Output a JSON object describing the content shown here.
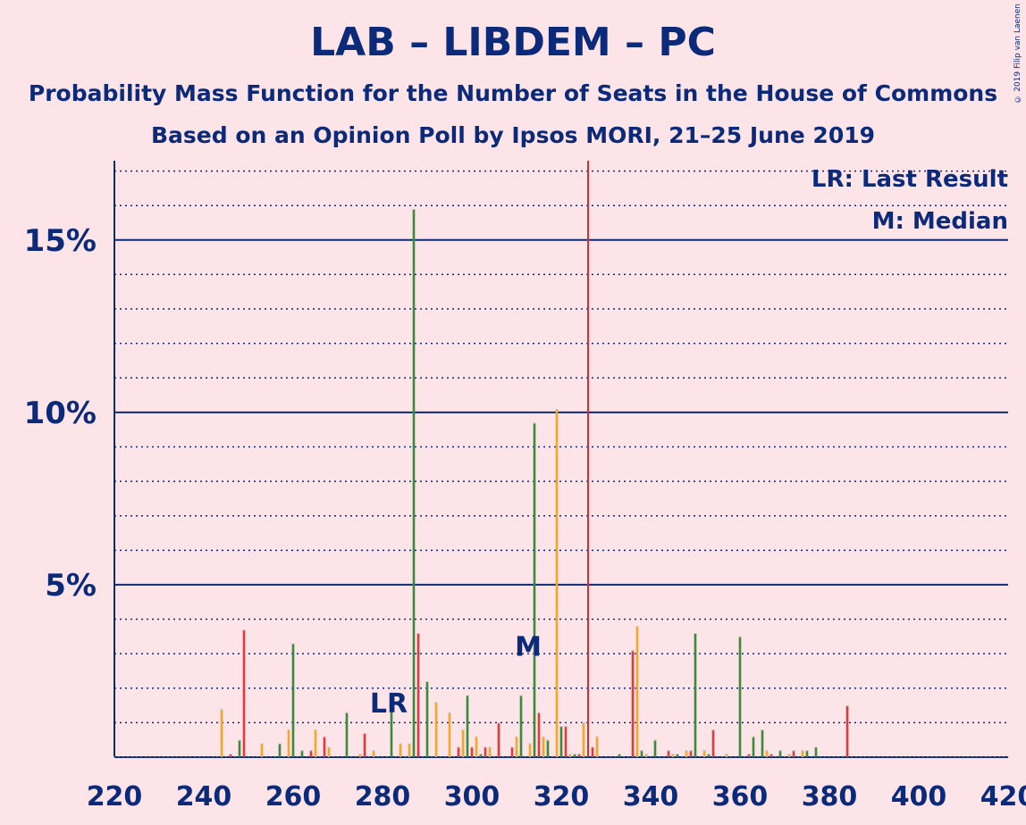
{
  "chart_data": {
    "type": "bar",
    "title": "LAB – LIBDEM – PC",
    "subtitle": "Probability Mass Function for the Number of Seats in the House of Commons",
    "subtitle2": "Based on an Opinion Poll by Ipsos MORI, 21–25 June 2019",
    "copyright": "© 2019 Filip van Laenen",
    "xlim": [
      220,
      420
    ],
    "ylim": [
      0,
      17.3
    ],
    "x_ticks": [
      220,
      240,
      260,
      280,
      300,
      320,
      340,
      360,
      380,
      400,
      420
    ],
    "y_ticks": [
      {
        "value": 5,
        "label": "5%"
      },
      {
        "value": 10,
        "label": "10%"
      },
      {
        "value": 15,
        "label": "15%"
      }
    ],
    "minor_grid_step": 1,
    "last_result": {
      "seat": 326,
      "label": "LR: Last Result",
      "marker": "LR",
      "marker_seat": 282,
      "marker_value": 1.6
    },
    "median": {
      "seat": 314,
      "label": "M: Median",
      "marker": "M",
      "marker_value": 3.2
    },
    "series": [
      {
        "name": "orange",
        "color": "#f4a62a",
        "points": [
          [
            244,
            1.4
          ],
          [
            253,
            0.4
          ],
          [
            259,
            0.8
          ],
          [
            265,
            0.8
          ],
          [
            268,
            0.3
          ],
          [
            275,
            0.1
          ],
          [
            278,
            0.2
          ],
          [
            284,
            0.4
          ],
          [
            286,
            0.4
          ],
          [
            292,
            1.6
          ],
          [
            295,
            1.3
          ],
          [
            298,
            0.8
          ],
          [
            301,
            0.6
          ],
          [
            304,
            0.3
          ],
          [
            310,
            0.6
          ],
          [
            313,
            0.4
          ],
          [
            316,
            0.6
          ],
          [
            319,
            10.1
          ],
          [
            322,
            0.1
          ],
          [
            325,
            1.0
          ],
          [
            328,
            0.6
          ],
          [
            337,
            3.8
          ],
          [
            339,
            0.1
          ],
          [
            345,
            0.1
          ],
          [
            348,
            0.2
          ],
          [
            352,
            0.2
          ],
          [
            357,
            0.1
          ],
          [
            363,
            0.1
          ],
          [
            366,
            0.2
          ],
          [
            371,
            0.1
          ],
          [
            374,
            0.2
          ]
        ]
      },
      {
        "name": "red",
        "color": "#e03a3a",
        "points": [
          [
            246,
            0.1
          ],
          [
            249,
            3.7
          ],
          [
            264,
            0.2
          ],
          [
            267,
            0.6
          ],
          [
            276,
            0.7
          ],
          [
            288,
            3.6
          ],
          [
            297,
            0.3
          ],
          [
            300,
            0.3
          ],
          [
            303,
            0.3
          ],
          [
            306,
            1.0
          ],
          [
            309,
            0.3
          ],
          [
            315,
            1.3
          ],
          [
            321,
            0.9
          ],
          [
            324,
            0.1
          ],
          [
            327,
            0.3
          ],
          [
            336,
            3.1
          ],
          [
            344,
            0.2
          ],
          [
            349,
            0.2
          ],
          [
            354,
            0.8
          ],
          [
            362,
            0.1
          ],
          [
            367,
            0.1
          ],
          [
            372,
            0.2
          ],
          [
            384,
            1.5
          ]
        ]
      },
      {
        "name": "green",
        "color": "#3a8a3a",
        "points": [
          [
            248,
            0.5
          ],
          [
            257,
            0.4
          ],
          [
            260,
            3.3
          ],
          [
            262,
            0.2
          ],
          [
            272,
            1.3
          ],
          [
            282,
            1.6
          ],
          [
            287,
            15.9
          ],
          [
            290,
            2.2
          ],
          [
            299,
            1.8
          ],
          [
            302,
            0.1
          ],
          [
            311,
            1.8
          ],
          [
            314,
            9.7
          ],
          [
            317,
            0.5
          ],
          [
            320,
            0.9
          ],
          [
            323,
            0.1
          ],
          [
            333,
            0.1
          ],
          [
            338,
            0.2
          ],
          [
            341,
            0.5
          ],
          [
            346,
            0.1
          ],
          [
            350,
            3.6
          ],
          [
            353,
            0.1
          ],
          [
            360,
            3.5
          ],
          [
            363,
            0.6
          ],
          [
            365,
            0.8
          ],
          [
            369,
            0.2
          ],
          [
            375,
            0.2
          ],
          [
            377,
            0.3
          ]
        ]
      }
    ]
  }
}
